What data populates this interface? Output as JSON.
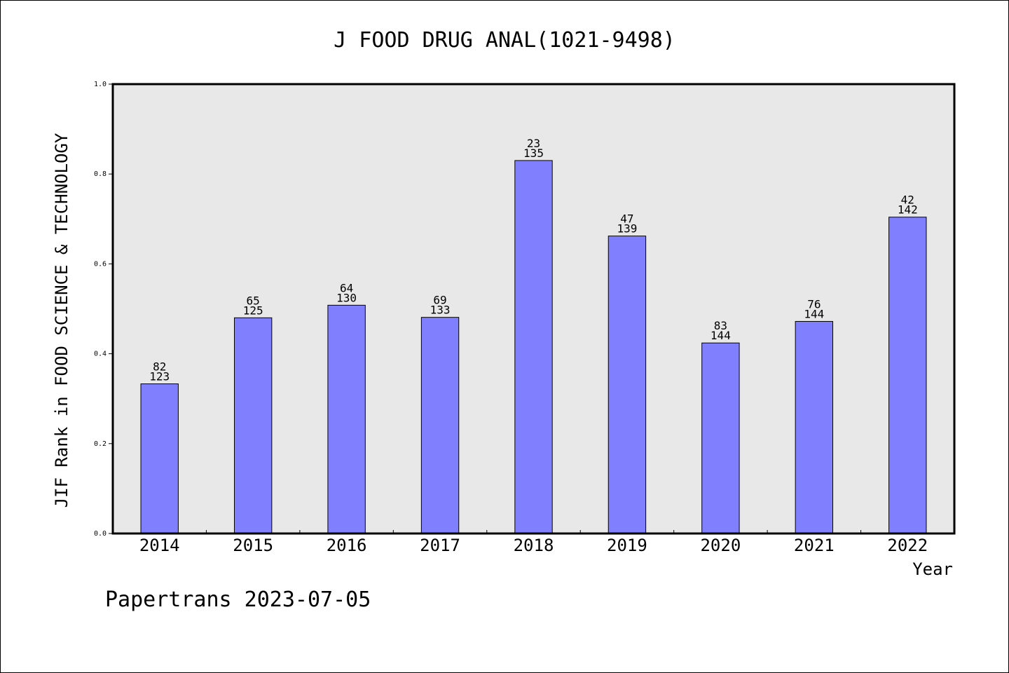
{
  "chart_data": {
    "type": "bar",
    "title": "J FOOD DRUG ANAL(1021-9498)",
    "ylabel": "JIF Rank in FOOD SCIENCE & TECHNOLOGY",
    "xlabel": "Year",
    "ylim": [
      0,
      1.0
    ],
    "yticks": [
      "0.0",
      "0.2",
      "0.4",
      "0.6",
      "0.8",
      "1.0"
    ],
    "categories": [
      "2014",
      "2015",
      "2016",
      "2017",
      "2018",
      "2019",
      "2020",
      "2021",
      "2022"
    ],
    "values": [
      0.333,
      0.48,
      0.508,
      0.481,
      0.83,
      0.662,
      0.424,
      0.472,
      0.704
    ],
    "rank": [
      "82",
      "65",
      "64",
      "69",
      "23",
      "47",
      "83",
      "76",
      "42"
    ],
    "total": [
      "123",
      "125",
      "130",
      "133",
      "135",
      "139",
      "144",
      "144",
      "142"
    ],
    "bar_color": "#8080ff",
    "plot_background": "#e8e8e8",
    "grid": false,
    "legend": "none"
  },
  "footer": "Papertrans 2023-07-05"
}
